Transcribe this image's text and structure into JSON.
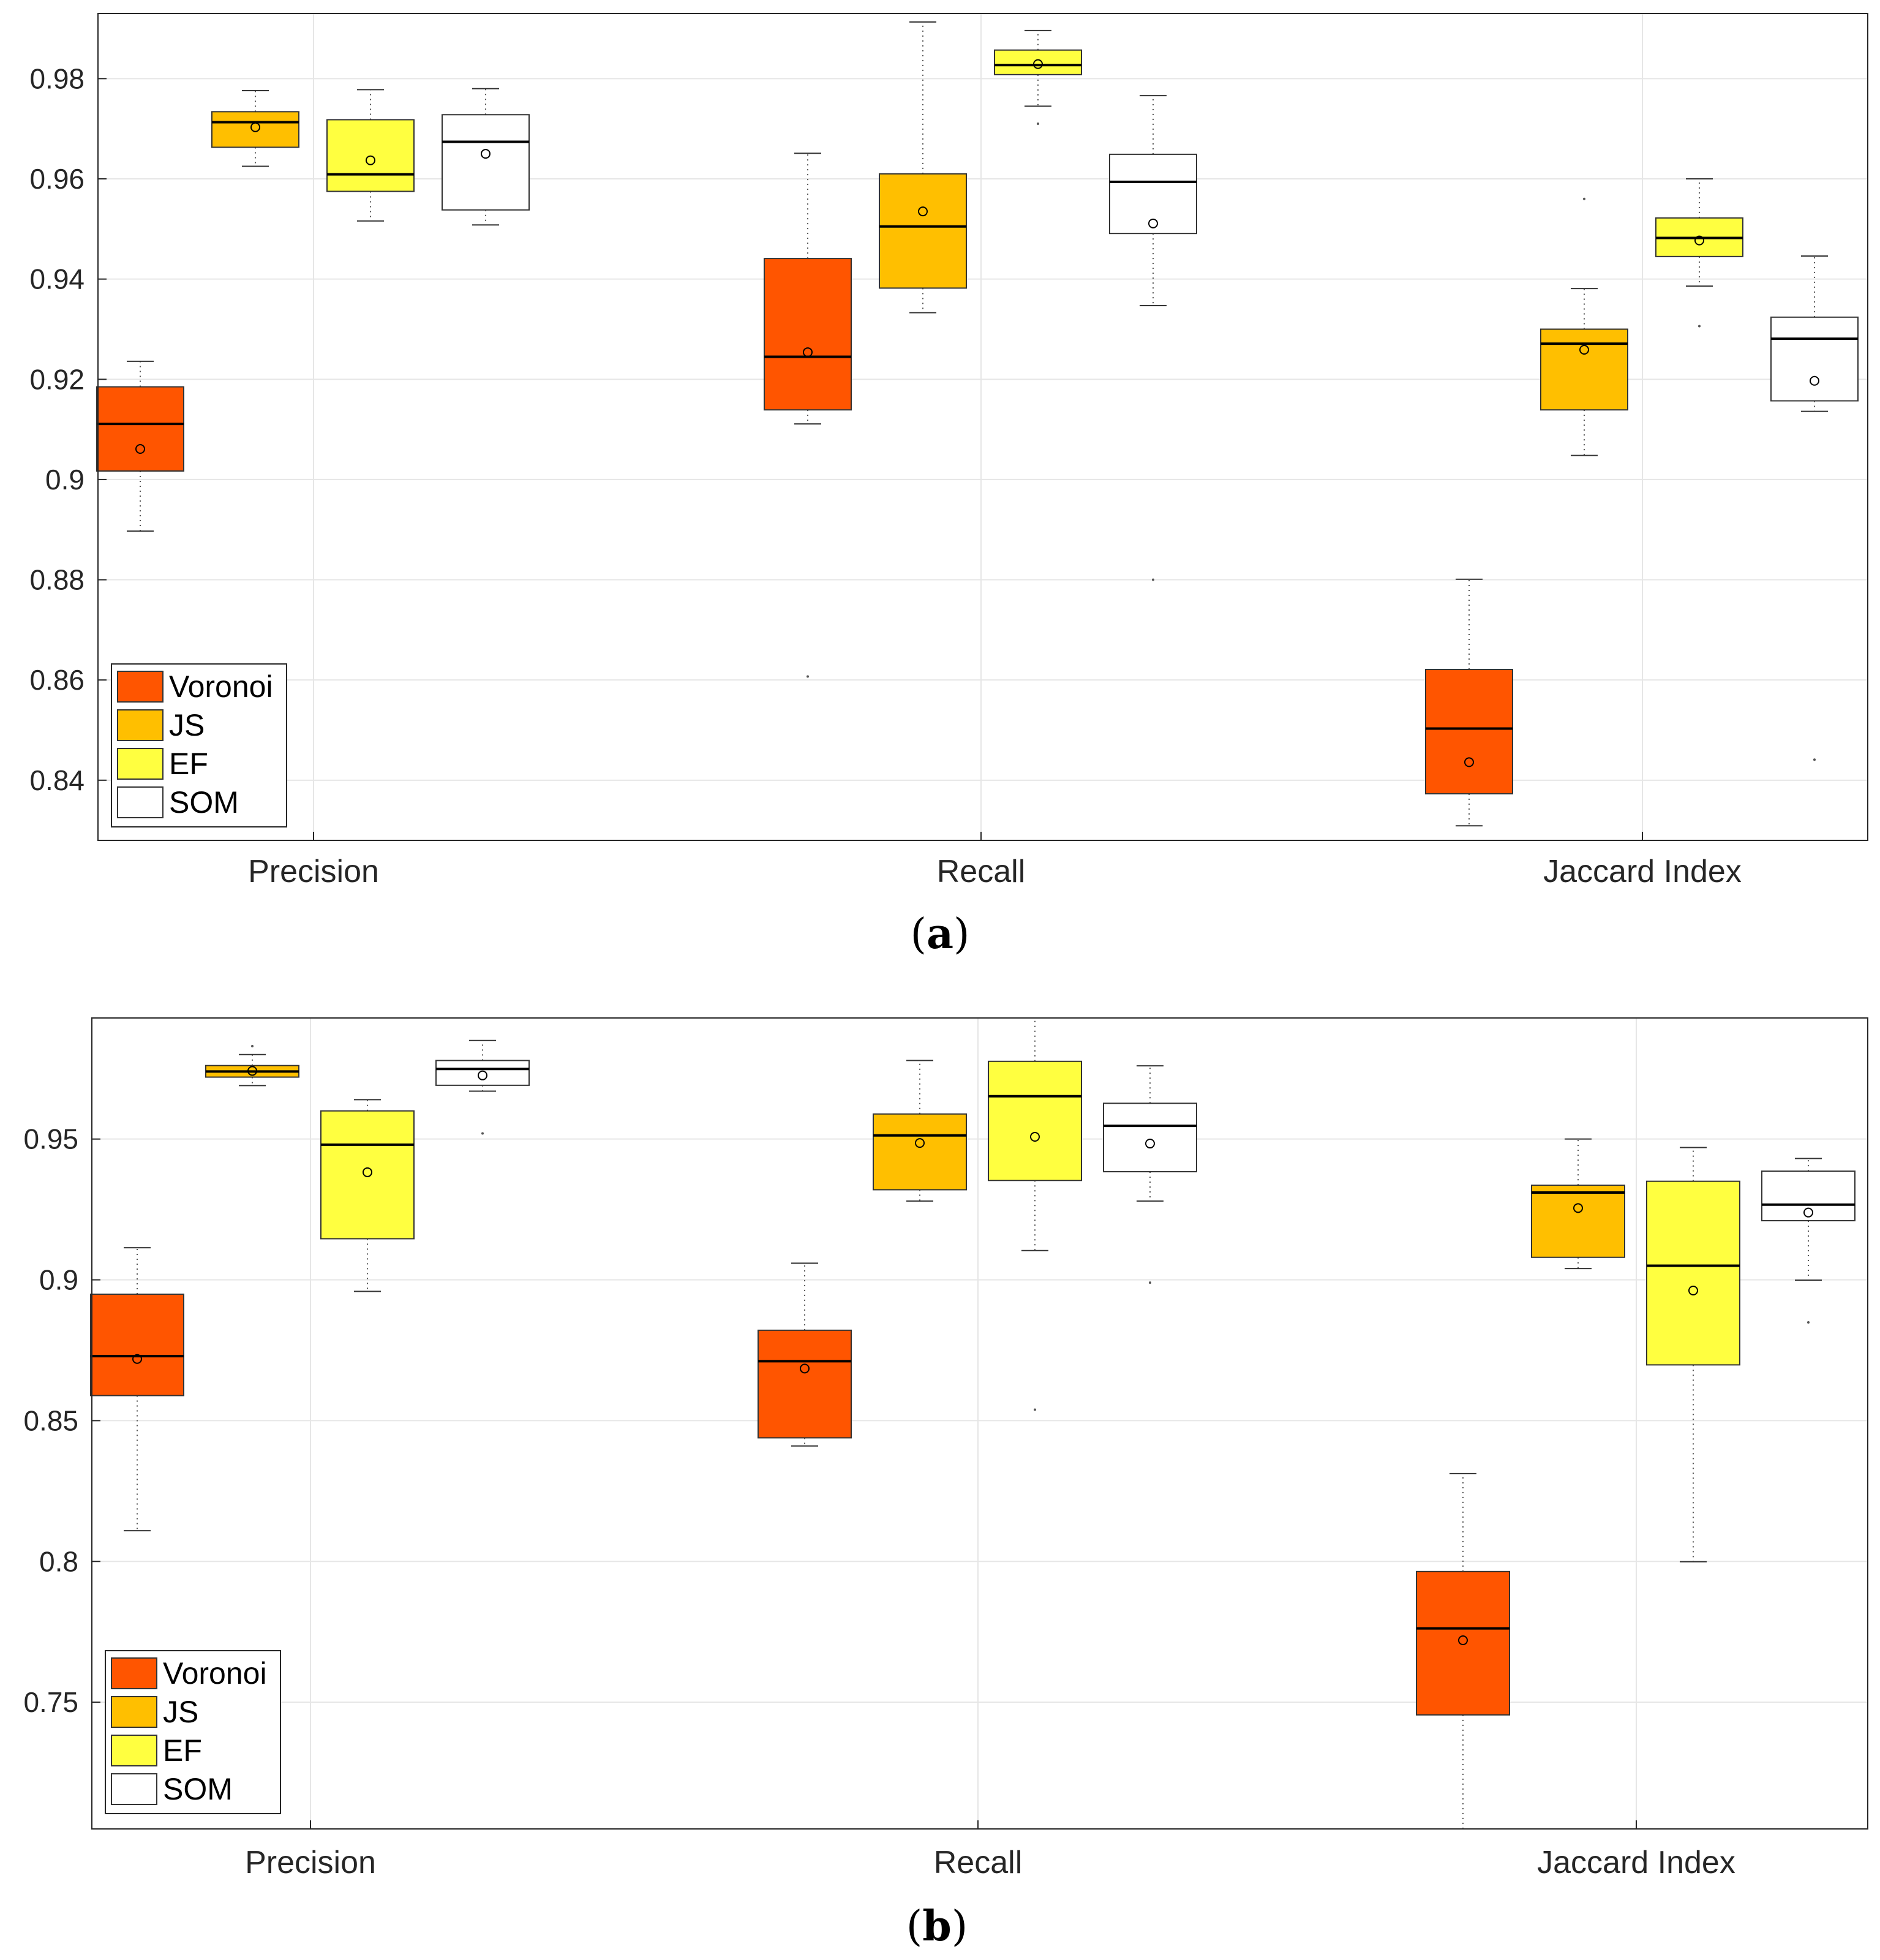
{
  "colors": {
    "Voronoi": "#ff5500",
    "JS": "#ffbf00",
    "EF": "#ffff40",
    "SOM": "#ffffff"
  },
  "chart_data": [
    {
      "type": "boxplot",
      "caption": "a",
      "categories": [
        "Precision",
        "Recall",
        "Jaccard Index"
      ],
      "series_names": [
        "Voronoi",
        "JS",
        "EF",
        "SOM"
      ],
      "legend_position": "bottom-left",
      "grid": true,
      "ylim": [
        0.828,
        0.993
      ],
      "yticks": [
        0.84,
        0.86,
        0.88,
        0.9,
        0.92,
        0.94,
        0.96,
        0.98
      ],
      "ytick_labels": [
        "0.84",
        "0.86",
        "0.88",
        "0.9",
        "0.92",
        "0.94",
        "0.96",
        "0.98"
      ],
      "boxes": [
        {
          "category": "Precision",
          "series": "Voronoi",
          "whisker_low": 0.8897,
          "q1": 0.9017,
          "median": 0.9111,
          "q3": 0.9185,
          "whisker_high": 0.9236,
          "mean": 0.9061,
          "outliers": []
        },
        {
          "category": "Precision",
          "series": "JS",
          "whisker_low": 0.9625,
          "q1": 0.9663,
          "median": 0.9713,
          "q3": 0.9734,
          "whisker_high": 0.9776,
          "mean": 0.9703,
          "outliers": []
        },
        {
          "category": "Precision",
          "series": "EF",
          "whisker_low": 0.9516,
          "q1": 0.9575,
          "median": 0.9609,
          "q3": 0.9718,
          "whisker_high": 0.9778,
          "mean": 0.9637,
          "outliers": []
        },
        {
          "category": "Precision",
          "series": "SOM",
          "whisker_low": 0.9508,
          "q1": 0.9538,
          "median": 0.9674,
          "q3": 0.9728,
          "whisker_high": 0.978,
          "mean": 0.965,
          "outliers": []
        },
        {
          "category": "Recall",
          "series": "Voronoi",
          "whisker_low": 0.9111,
          "q1": 0.9139,
          "median": 0.9245,
          "q3": 0.9441,
          "whisker_high": 0.9651,
          "mean": 0.9254,
          "outliers": [
            0.8607
          ]
        },
        {
          "category": "Recall",
          "series": "JS",
          "whisker_low": 0.9333,
          "q1": 0.9382,
          "median": 0.9505,
          "q3": 0.961,
          "whisker_high": 0.9913,
          "mean": 0.9535,
          "outliers": []
        },
        {
          "category": "Recall",
          "series": "EF",
          "whisker_low": 0.9745,
          "q1": 0.9808,
          "median": 0.9827,
          "q3": 0.9857,
          "whisker_high": 0.9896,
          "mean": 0.9829,
          "outliers": [
            0.971
          ]
        },
        {
          "category": "Recall",
          "series": "SOM",
          "whisker_low": 0.9347,
          "q1": 0.9491,
          "median": 0.9594,
          "q3": 0.9649,
          "whisker_high": 0.9766,
          "mean": 0.9511,
          "outliers": [
            0.88
          ]
        },
        {
          "category": "Jaccard Index",
          "series": "Voronoi",
          "whisker_low": 0.8309,
          "q1": 0.8373,
          "median": 0.8503,
          "q3": 0.8621,
          "whisker_high": 0.8801,
          "mean": 0.8436,
          "outliers": []
        },
        {
          "category": "Jaccard Index",
          "series": "JS",
          "whisker_low": 0.9048,
          "q1": 0.9139,
          "median": 0.9271,
          "q3": 0.93,
          "whisker_high": 0.9381,
          "mean": 0.9259,
          "outliers": [
            0.956
          ]
        },
        {
          "category": "Jaccard Index",
          "series": "EF",
          "whisker_low": 0.9386,
          "q1": 0.9445,
          "median": 0.9482,
          "q3": 0.9522,
          "whisker_high": 0.96,
          "mean": 0.9477,
          "outliers": [
            0.9306
          ]
        },
        {
          "category": "Jaccard Index",
          "series": "SOM",
          "whisker_low": 0.9136,
          "q1": 0.9157,
          "median": 0.9281,
          "q3": 0.9324,
          "whisker_high": 0.9446,
          "mean": 0.9197,
          "outliers": [
            0.8441
          ]
        }
      ]
    },
    {
      "type": "boxplot",
      "caption": "b",
      "categories": [
        "Precision",
        "Recall",
        "Jaccard Index"
      ],
      "series_names": [
        "Voronoi",
        "JS",
        "EF",
        "SOM"
      ],
      "legend_position": "bottom-left",
      "grid": true,
      "ylim": [
        0.705,
        0.993
      ],
      "yticks": [
        0.75,
        0.8,
        0.85,
        0.9,
        0.95
      ],
      "ytick_labels": [
        "0.75",
        "0.8",
        "0.85",
        "0.9",
        "0.95"
      ],
      "boxes": [
        {
          "category": "Precision",
          "series": "Voronoi",
          "whisker_low": 0.8109,
          "q1": 0.8589,
          "median": 0.8729,
          "q3": 0.8949,
          "whisker_high": 0.9114,
          "mean": 0.8719,
          "outliers": []
        },
        {
          "category": "Precision",
          "series": "JS",
          "whisker_low": 0.969,
          "q1": 0.972,
          "median": 0.974,
          "q3": 0.9761,
          "whisker_high": 0.98,
          "mean": 0.9742,
          "outliers": [
            0.983
          ]
        },
        {
          "category": "Precision",
          "series": "EF",
          "whisker_low": 0.8959,
          "q1": 0.9146,
          "median": 0.948,
          "q3": 0.96,
          "whisker_high": 0.964,
          "mean": 0.9382,
          "outliers": []
        },
        {
          "category": "Precision",
          "series": "SOM",
          "whisker_low": 0.967,
          "q1": 0.9691,
          "median": 0.9749,
          "q3": 0.9779,
          "whisker_high": 0.985,
          "mean": 0.9726,
          "outliers": [
            0.952
          ]
        },
        {
          "category": "Recall",
          "series": "Voronoi",
          "whisker_low": 0.841,
          "q1": 0.8439,
          "median": 0.8711,
          "q3": 0.8821,
          "whisker_high": 0.9059,
          "mean": 0.8685,
          "outliers": []
        },
        {
          "category": "Recall",
          "series": "JS",
          "whisker_low": 0.928,
          "q1": 0.932,
          "median": 0.9513,
          "q3": 0.9589,
          "whisker_high": 0.9779,
          "mean": 0.9486,
          "outliers": []
        },
        {
          "category": "Recall",
          "series": "EF",
          "whisker_low": 0.9104,
          "q1": 0.9353,
          "median": 0.9652,
          "q3": 0.9776,
          "whisker_high": 0.993,
          "mean": 0.9508,
          "outliers": [
            0.8539
          ]
        },
        {
          "category": "Recall",
          "series": "SOM",
          "whisker_low": 0.928,
          "q1": 0.9384,
          "median": 0.9547,
          "q3": 0.9627,
          "whisker_high": 0.976,
          "mean": 0.9484,
          "outliers": [
            0.899
          ]
        },
        {
          "category": "Jaccard Index",
          "series": "Voronoi",
          "whisker_low": 0.705,
          "q1": 0.7455,
          "median": 0.7762,
          "q3": 0.7964,
          "whisker_high": 0.8312,
          "mean": 0.772,
          "outliers": []
        },
        {
          "category": "Jaccard Index",
          "series": "JS",
          "whisker_low": 0.904,
          "q1": 0.908,
          "median": 0.931,
          "q3": 0.9336,
          "whisker_high": 0.95,
          "mean": 0.9255,
          "outliers": []
        },
        {
          "category": "Jaccard Index",
          "series": "EF",
          "whisker_low": 0.7999,
          "q1": 0.8698,
          "median": 0.905,
          "q3": 0.935,
          "whisker_high": 0.947,
          "mean": 0.8962,
          "outliers": []
        },
        {
          "category": "Jaccard Index",
          "series": "SOM",
          "whisker_low": 0.8999,
          "q1": 0.921,
          "median": 0.9267,
          "q3": 0.9386,
          "whisker_high": 0.9431,
          "mean": 0.9239,
          "outliers": [
            0.8849
          ]
        }
      ]
    }
  ]
}
